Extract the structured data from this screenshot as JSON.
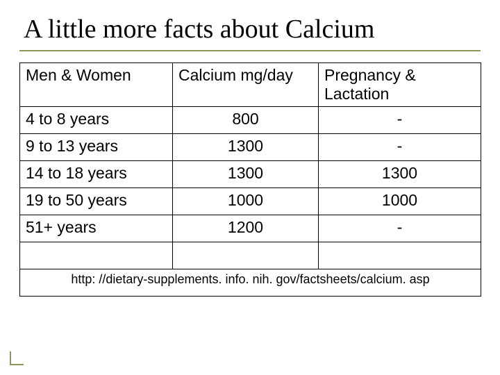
{
  "accent_color": "#8a9a5b",
  "title": "A little more facts about Calcium",
  "table": {
    "columns": [
      "Men & Women",
      "Calcium mg/day",
      "Pregnancy & Lactation"
    ],
    "rows": [
      [
        "4 to 8 years",
        "800",
        "-"
      ],
      [
        "9 to 13 years",
        "1300",
        "-"
      ],
      [
        "14 to 18 years",
        "1300",
        "1300"
      ],
      [
        "19 to 50 years",
        "1000",
        "1000"
      ],
      [
        "51+ years",
        "1200",
        "-"
      ],
      [
        "",
        "",
        ""
      ]
    ],
    "footer": "http: //dietary-supplements. info. nih. gov/factsheets/calcium. asp"
  }
}
